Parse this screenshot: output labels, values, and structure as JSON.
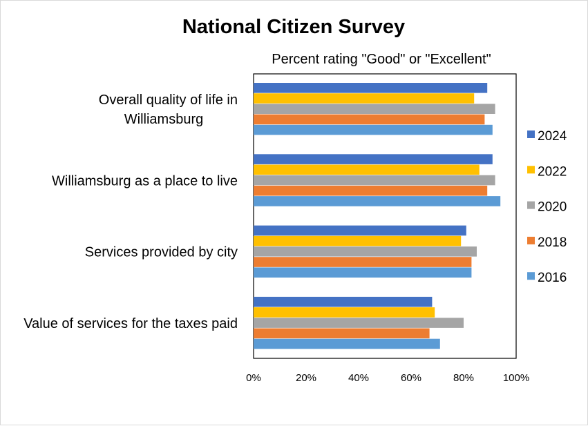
{
  "chart_data": {
    "type": "bar",
    "orientation": "horizontal",
    "title": "National Citizen Survey",
    "subtitle": "Percent rating \"Good\" or \"Excellent\"",
    "categories": [
      [
        "Overall quality of life in",
        "Williamsburg"
      ],
      [
        "Williamsburg as a place to live"
      ],
      [
        "Services provided by city"
      ],
      [
        "Value of services for the taxes paid"
      ]
    ],
    "xlim": [
      0,
      100
    ],
    "xticks": [
      {
        "value": 0,
        "label": "0%"
      },
      {
        "value": 20,
        "label": "20%"
      },
      {
        "value": 40,
        "label": "40%"
      },
      {
        "value": 60,
        "label": "60%"
      },
      {
        "value": 80,
        "label": "80%"
      },
      {
        "value": 100,
        "label": "100%"
      }
    ],
    "series": [
      {
        "name": "2024",
        "color": "#4472C4",
        "values": [
          89,
          91,
          81,
          68
        ]
      },
      {
        "name": "2022",
        "color": "#FFC000",
        "values": [
          84,
          86,
          79,
          69
        ]
      },
      {
        "name": "2020",
        "color": "#A5A5A5",
        "values": [
          92,
          92,
          85,
          80
        ]
      },
      {
        "name": "2018",
        "color": "#ED7D31",
        "values": [
          88,
          89,
          83,
          67
        ]
      },
      {
        "name": "2016",
        "color": "#5B9BD5",
        "values": [
          91,
          94,
          83,
          71
        ]
      }
    ],
    "legend_position": "right",
    "grid": false
  }
}
